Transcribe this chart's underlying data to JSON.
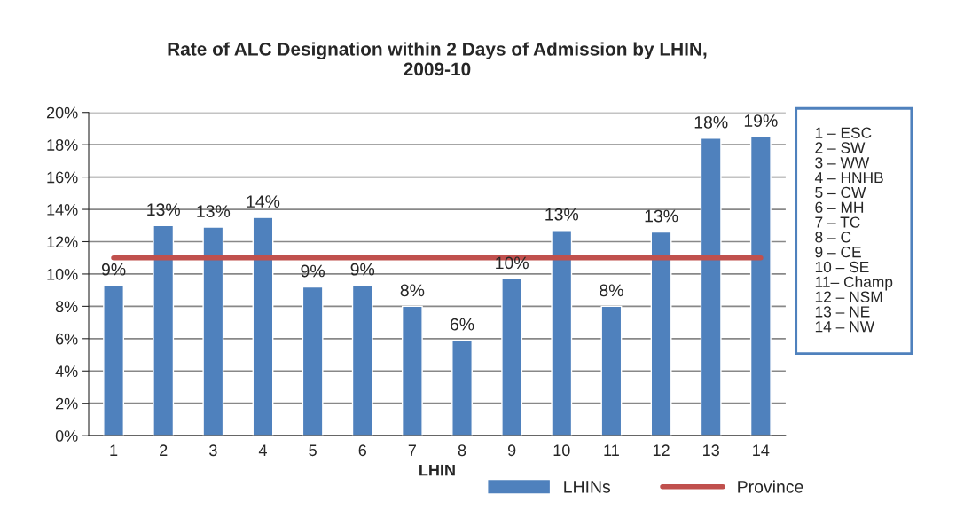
{
  "chart_data": {
    "type": "bar",
    "title": "Rate of ALC Designation within 2 Days of Admission by LHIN,\n2009-10",
    "xlabel": "LHIN",
    "categories": [
      "1",
      "2",
      "3",
      "4",
      "5",
      "6",
      "7",
      "8",
      "9",
      "10",
      "11",
      "12",
      "13",
      "14"
    ],
    "series": [
      {
        "name": "LHINs",
        "color": "#4f81bd",
        "values": [
          9.3,
          13.0,
          12.9,
          13.5,
          9.2,
          9.3,
          8.0,
          5.9,
          9.7,
          12.7,
          8.0,
          12.6,
          18.4,
          18.5
        ],
        "value_labels": [
          "9%",
          "13%",
          "13%",
          "14%",
          "9%",
          "9%",
          "8%",
          "6%",
          "10%",
          "13%",
          "8%",
          "13%",
          "18%",
          "19%"
        ]
      },
      {
        "name": "Province",
        "type": "line",
        "color": "#c0504d",
        "values": [
          11.0,
          11.0,
          11.0,
          11.0,
          11.0,
          11.0,
          11.0,
          11.0,
          11.0,
          11.0,
          11.0,
          11.0,
          11.0,
          11.0
        ]
      }
    ],
    "ylim": [
      0,
      20
    ],
    "yticks": [
      {
        "value": 0,
        "label": "0%"
      },
      {
        "value": 2,
        "label": "2%"
      },
      {
        "value": 4,
        "label": "4%"
      },
      {
        "value": 6,
        "label": "6%"
      },
      {
        "value": 8,
        "label": "8%"
      },
      {
        "value": 10,
        "label": "10%"
      },
      {
        "value": 12,
        "label": "12%"
      },
      {
        "value": 14,
        "label": "14%"
      },
      {
        "value": 16,
        "label": "16%"
      },
      {
        "value": 18,
        "label": "18%"
      },
      {
        "value": 20,
        "label": "20%"
      }
    ],
    "grid": "y",
    "legend": "bottom",
    "marker": "none",
    "line_style": "solid",
    "annotations": [
      "1 – ESC\n2 – SW\n3 – WW\n4 – HNHB\n5 – CW\n6 – MH\n7 – TC\n8 – C\n9 – CE\n10 – SE\n11– Champ\n12 – NSM\n13 – NE\n14 – NW"
    ]
  }
}
